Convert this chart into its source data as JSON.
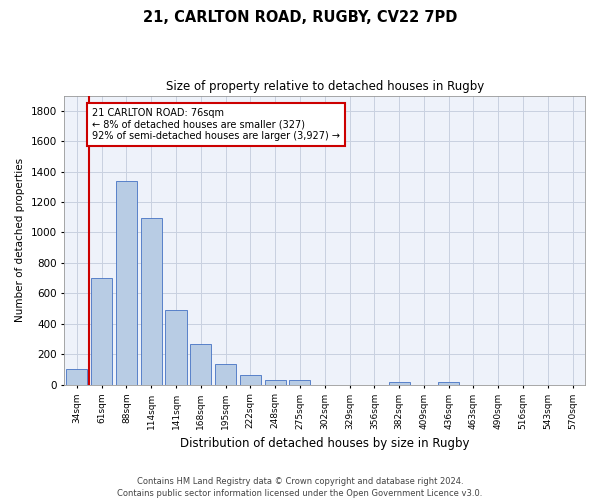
{
  "title1": "21, CARLTON ROAD, RUGBY, CV22 7PD",
  "title2": "Size of property relative to detached houses in Rugby",
  "xlabel": "Distribution of detached houses by size in Rugby",
  "ylabel": "Number of detached properties",
  "categories": [
    "34sqm",
    "61sqm",
    "88sqm",
    "114sqm",
    "141sqm",
    "168sqm",
    "195sqm",
    "222sqm",
    "248sqm",
    "275sqm",
    "302sqm",
    "329sqm",
    "356sqm",
    "382sqm",
    "409sqm",
    "436sqm",
    "463sqm",
    "490sqm",
    "516sqm",
    "543sqm",
    "570sqm"
  ],
  "values": [
    100,
    700,
    1340,
    1095,
    490,
    270,
    135,
    65,
    30,
    30,
    0,
    0,
    0,
    15,
    0,
    20,
    0,
    0,
    0,
    0,
    0
  ],
  "bar_color": "#b8cce4",
  "bar_edge_color": "#4472c4",
  "grid_color": "#c8d0e0",
  "annotation_text_line1": "21 CARLTON ROAD: 76sqm",
  "annotation_text_line2": "← 8% of detached houses are smaller (327)",
  "annotation_text_line3": "92% of semi-detached houses are larger (3,927) →",
  "annotation_box_facecolor": "#ffffff",
  "annotation_box_edgecolor": "#cc0000",
  "vline_color": "#cc0000",
  "ylim": [
    0,
    1900
  ],
  "yticks": [
    0,
    200,
    400,
    600,
    800,
    1000,
    1200,
    1400,
    1600,
    1800
  ],
  "footer1": "Contains HM Land Registry data © Crown copyright and database right 2024.",
  "footer2": "Contains public sector information licensed under the Open Government Licence v3.0.",
  "background_color": "#ffffff",
  "plot_bg_color": "#eef2fa"
}
